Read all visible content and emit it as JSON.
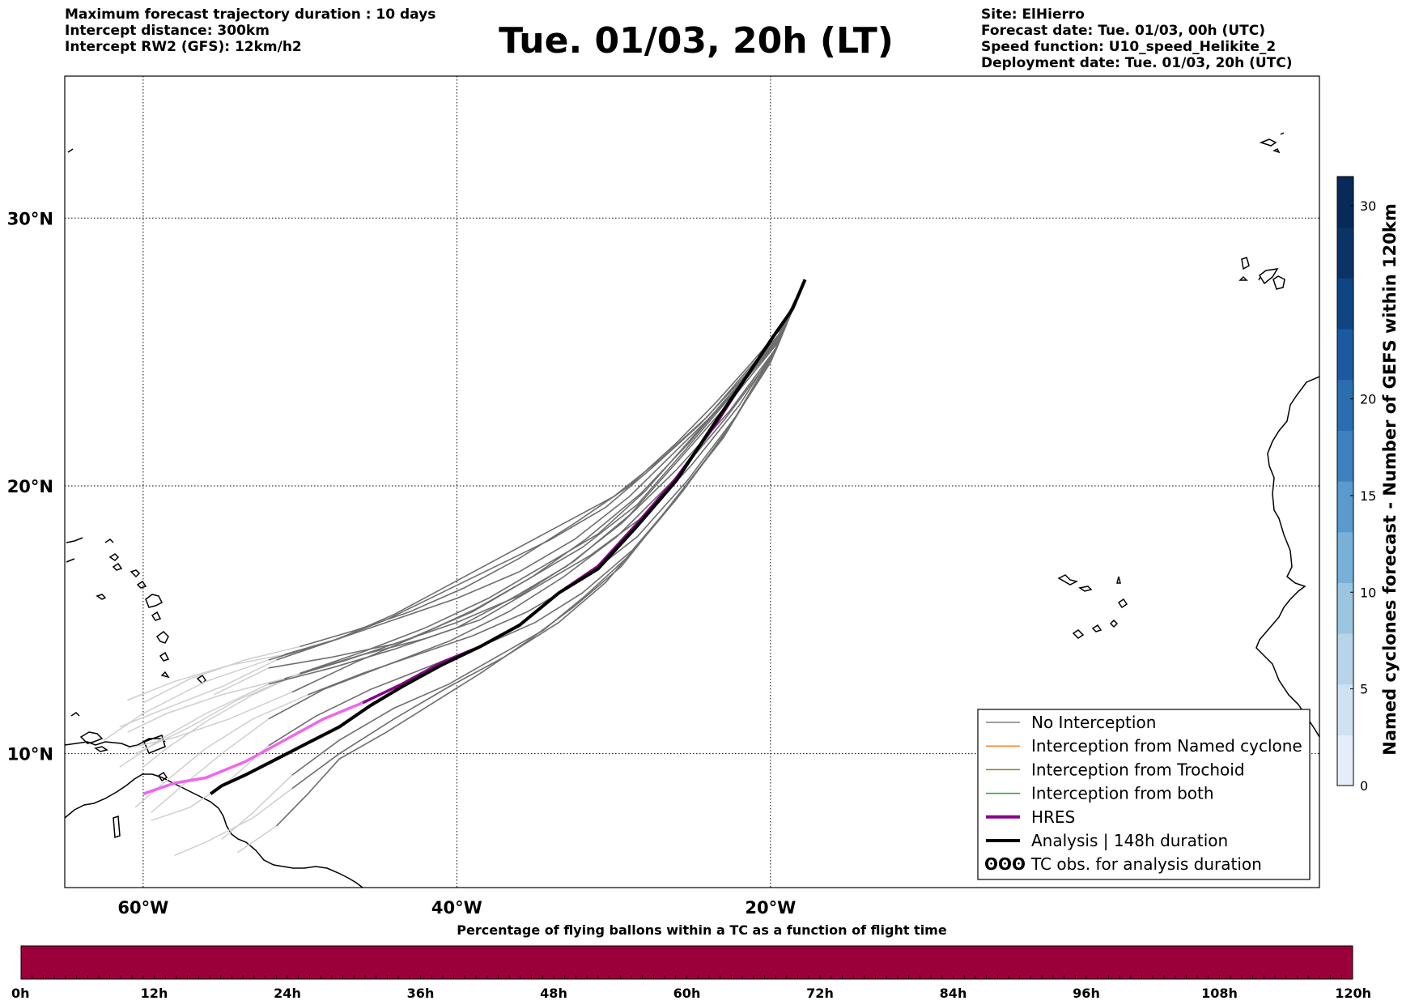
{
  "header_left": [
    "Maximum forecast trajectory duration : 10 days",
    "Intercept distance: 300km",
    "Intercept RW2 (GFS):  12km/h2"
  ],
  "title": "Tue. 01/03, 20h (LT)",
  "header_right": [
    "Site: ElHierro",
    "Forecast date: Tue. 01/03, 00h (UTC)",
    "Speed function: U10_speed_Helikite_2",
    "Deployment date: Tue. 01/03, 20h (UTC)"
  ],
  "map": {
    "lon_range": [
      -65,
      15
    ],
    "lat_range": [
      5,
      35.3
    ],
    "lon_ticks": [
      {
        "value": -60,
        "label": "60°W"
      },
      {
        "value": -40,
        "label": "40°W"
      },
      {
        "value": -20,
        "label": "20°W"
      }
    ],
    "lat_ticks": [
      {
        "value": 30,
        "label": "30°N"
      },
      {
        "value": 20,
        "label": "20°N"
      },
      {
        "value": 10,
        "label": "10°N"
      }
    ],
    "grid": true
  },
  "colorbar": {
    "label": "Named cyclones forecast - Number of GEFS within 120km",
    "ticks": [
      "0",
      "5",
      "10",
      "15",
      "20",
      "30"
    ],
    "colors": [
      "#e4edf8",
      "#d0e2f2",
      "#b8d4ea",
      "#9cc5e2",
      "#79b0d8",
      "#5a9acd",
      "#3d82bf",
      "#2a6eb0",
      "#1b5a9e",
      "#0f4583",
      "#0a3366",
      "#082a58"
    ]
  },
  "legend": {
    "items": [
      {
        "label": "No Interception",
        "color": "#808080",
        "width": 1.5
      },
      {
        "label": "Interception from Named cyclone",
        "color": "#ff7f2a",
        "width": 1.5
      },
      {
        "label": "Interception from Trochoid",
        "color": "#8b7f1a",
        "width": 1.5
      },
      {
        "label": "Interception from both",
        "color": "#2ca02c",
        "width": 1.5
      },
      {
        "label": "HRES",
        "color": "#8b008b",
        "width": 4
      },
      {
        "label": "Analysis | 148h duration",
        "color": "#000000",
        "width": 4
      },
      {
        "label": "TC obs. for analysis duration",
        "color": "#000000",
        "symbol": "ʘʘʘ"
      }
    ]
  },
  "time_bar": {
    "title": "Percentage of flying ballons within a TC as a function of flight time",
    "labels": [
      "0h",
      "12h",
      "24h",
      "36h",
      "48h",
      "60h",
      "72h",
      "84h",
      "96h",
      "108h",
      "120h"
    ],
    "color": "#9b003a"
  },
  "tracks": {
    "origin": [
      -17.8,
      27.7
    ],
    "hres": [
      [
        -17.8,
        27.7
      ],
      [
        -18.6,
        26.6
      ],
      [
        -19.8,
        25.6
      ],
      [
        -21.5,
        24.1
      ],
      [
        -23.5,
        22.3
      ],
      [
        -26.0,
        20.3
      ],
      [
        -28.5,
        18.6
      ],
      [
        -31.0,
        17.0
      ],
      [
        -33.5,
        16.0
      ],
      [
        -36.0,
        14.8
      ],
      [
        -38.5,
        14.0
      ],
      [
        -41.0,
        13.4
      ],
      [
        -43.5,
        12.6
      ],
      [
        -46.0,
        11.9
      ],
      [
        -48.5,
        11.3
      ],
      [
        -51.0,
        10.5
      ],
      [
        -53.5,
        9.7
      ],
      [
        -56.0,
        9.1
      ],
      [
        -58.0,
        8.9
      ],
      [
        -60.0,
        8.5
      ]
    ],
    "analysis": [
      [
        -17.8,
        27.7
      ],
      [
        -18.6,
        26.6
      ],
      [
        -19.8,
        25.6
      ],
      [
        -21.5,
        24.1
      ],
      [
        -23.5,
        22.4
      ],
      [
        -26.0,
        20.2
      ],
      [
        -28.5,
        18.5
      ],
      [
        -31.0,
        16.9
      ],
      [
        -33.5,
        16.0
      ],
      [
        -36.0,
        14.8
      ],
      [
        -38.5,
        14.0
      ],
      [
        -41.0,
        13.3
      ],
      [
        -43.5,
        12.5
      ],
      [
        -45.5,
        11.8
      ],
      [
        -47.5,
        11.0
      ],
      [
        -49.5,
        10.4
      ],
      [
        -51.5,
        9.8
      ],
      [
        -53.5,
        9.2
      ],
      [
        -55.0,
        8.8
      ],
      [
        -55.7,
        8.5
      ]
    ],
    "ensemble": [
      [
        [
          -17.8,
          27.7
        ],
        [
          -19.5,
          25.5
        ],
        [
          -22.0,
          23.8
        ],
        [
          -25.0,
          21.8
        ],
        [
          -28.0,
          19.8
        ],
        [
          -31.0,
          18.2
        ],
        [
          -34.5,
          17.0
        ],
        [
          -38.0,
          15.8
        ],
        [
          -42.0,
          14.7
        ],
        [
          -46.0,
          13.8
        ],
        [
          -50.0,
          13.0
        ],
        [
          -54.0,
          12.0
        ],
        [
          -57.0,
          11.0
        ],
        [
          -60.5,
          10.0
        ]
      ],
      [
        [
          -17.8,
          27.7
        ],
        [
          -19.5,
          25.4
        ],
        [
          -22.3,
          23.5
        ],
        [
          -25.5,
          21.3
        ],
        [
          -28.5,
          19.3
        ],
        [
          -32.0,
          17.7
        ],
        [
          -35.5,
          16.5
        ],
        [
          -39.0,
          15.3
        ],
        [
          -43.0,
          14.3
        ],
        [
          -47.0,
          13.5
        ],
        [
          -51.0,
          12.8
        ],
        [
          -55.0,
          12.2
        ],
        [
          -58.5,
          11.5
        ],
        [
          -61.0,
          10.8
        ]
      ],
      [
        [
          -17.8,
          27.7
        ],
        [
          -19.6,
          25.3
        ],
        [
          -22.5,
          23.2
        ],
        [
          -25.8,
          21.0
        ],
        [
          -29.0,
          18.9
        ],
        [
          -32.5,
          17.2
        ],
        [
          -36.0,
          15.9
        ],
        [
          -40.0,
          14.9
        ],
        [
          -44.0,
          14.1
        ],
        [
          -48.0,
          13.6
        ],
        [
          -52.0,
          13.2
        ],
        [
          -55.5,
          12.2
        ]
      ],
      [
        [
          -17.8,
          27.7
        ],
        [
          -19.5,
          25.3
        ],
        [
          -22.0,
          23.0
        ],
        [
          -25.0,
          20.8
        ],
        [
          -28.0,
          18.9
        ],
        [
          -31.5,
          17.4
        ],
        [
          -35.0,
          16.2
        ],
        [
          -38.5,
          15.0
        ],
        [
          -42.0,
          14.3
        ],
        [
          -46.0,
          13.7
        ],
        [
          -50.0,
          13.0
        ],
        [
          -53.0,
          12.2
        ],
        [
          -56.0,
          11.2
        ],
        [
          -58.5,
          10.2
        ],
        [
          -60.0,
          9.5
        ]
      ],
      [
        [
          -17.8,
          27.7
        ],
        [
          -19.6,
          25.2
        ],
        [
          -22.2,
          22.6
        ],
        [
          -25.3,
          20.2
        ],
        [
          -28.5,
          18.1
        ],
        [
          -32.0,
          16.5
        ],
        [
          -35.5,
          15.3
        ],
        [
          -39.0,
          14.4
        ],
        [
          -42.5,
          13.7
        ],
        [
          -46.0,
          13.0
        ],
        [
          -49.5,
          12.2
        ],
        [
          -53.0,
          11.3
        ],
        [
          -56.0,
          10.2
        ],
        [
          -58.5,
          9.0
        ],
        [
          -60.5,
          8.0
        ]
      ],
      [
        [
          -17.8,
          27.7
        ],
        [
          -19.7,
          25.0
        ],
        [
          -22.5,
          22.3
        ],
        [
          -25.6,
          19.8
        ],
        [
          -28.8,
          17.6
        ],
        [
          -32.0,
          16.0
        ],
        [
          -35.0,
          14.9
        ],
        [
          -38.5,
          14.0
        ],
        [
          -42.0,
          13.2
        ],
        [
          -45.5,
          12.4
        ],
        [
          -49.0,
          11.4
        ],
        [
          -52.0,
          10.3
        ],
        [
          -54.5,
          9.0
        ],
        [
          -57.0,
          8.0
        ],
        [
          -59.5,
          7.5
        ]
      ],
      [
        [
          -17.8,
          27.7
        ],
        [
          -19.8,
          24.9
        ],
        [
          -22.8,
          22.0
        ],
        [
          -26.0,
          19.5
        ],
        [
          -29.0,
          17.4
        ],
        [
          -31.8,
          15.9
        ],
        [
          -34.5,
          14.6
        ],
        [
          -37.5,
          13.6
        ],
        [
          -40.5,
          12.6
        ],
        [
          -44.0,
          11.7
        ],
        [
          -47.5,
          10.5
        ],
        [
          -50.5,
          9.2
        ],
        [
          -53.0,
          7.8
        ],
        [
          -55.0,
          6.8
        ]
      ],
      [
        [
          -17.8,
          27.7
        ],
        [
          -19.9,
          24.8
        ],
        [
          -23.0,
          21.8
        ],
        [
          -26.5,
          19.2
        ],
        [
          -29.5,
          17.0
        ],
        [
          -32.5,
          15.5
        ],
        [
          -35.5,
          14.2
        ],
        [
          -38.5,
          13.0
        ],
        [
          -41.5,
          11.9
        ],
        [
          -44.5,
          10.8
        ],
        [
          -47.5,
          9.8
        ],
        [
          -49.5,
          8.5
        ],
        [
          -51.5,
          7.3
        ],
        [
          -54.0,
          6.3
        ]
      ],
      [
        [
          -17.8,
          27.7
        ],
        [
          -19.5,
          25.6
        ],
        [
          -21.8,
          24.0
        ],
        [
          -24.5,
          22.3
        ],
        [
          -27.5,
          20.7
        ],
        [
          -30.5,
          19.2
        ],
        [
          -34.0,
          18.0
        ],
        [
          -37.5,
          17.0
        ],
        [
          -41.0,
          16.0
        ],
        [
          -44.5,
          15.0
        ],
        [
          -48.0,
          14.2
        ],
        [
          -51.5,
          13.5
        ],
        [
          -55.0,
          12.5
        ],
        [
          -58.5,
          11.7
        ],
        [
          -61.5,
          11.0
        ]
      ],
      [
        [
          -17.8,
          27.7
        ],
        [
          -19.4,
          25.7
        ],
        [
          -21.5,
          24.3
        ],
        [
          -24.0,
          22.6
        ],
        [
          -27.0,
          21.0
        ],
        [
          -30.0,
          19.6
        ],
        [
          -33.5,
          18.5
        ],
        [
          -37.0,
          17.4
        ],
        [
          -40.5,
          16.3
        ],
        [
          -44.0,
          15.2
        ],
        [
          -47.5,
          14.3
        ],
        [
          -51.0,
          13.7
        ],
        [
          -54.5,
          13.3
        ],
        [
          -58.0,
          12.7
        ],
        [
          -61.0,
          12.0
        ]
      ],
      [
        [
          -17.8,
          27.7
        ],
        [
          -19.6,
          25.4
        ],
        [
          -22.4,
          23.4
        ],
        [
          -25.7,
          21.5
        ],
        [
          -29.0,
          19.6
        ],
        [
          -32.5,
          18.0
        ],
        [
          -36.0,
          16.8
        ],
        [
          -40.0,
          15.8
        ],
        [
          -44.0,
          15.0
        ],
        [
          -48.0,
          14.2
        ],
        [
          -52.0,
          13.5
        ],
        [
          -56.0,
          12.7
        ],
        [
          -60.0,
          11.5
        ],
        [
          -62.5,
          10.5
        ]
      ],
      [
        [
          -17.8,
          27.7
        ],
        [
          -19.7,
          25.1
        ],
        [
          -22.6,
          22.8
        ],
        [
          -26.0,
          20.6
        ],
        [
          -29.5,
          18.6
        ],
        [
          -33.0,
          17.0
        ],
        [
          -36.5,
          15.8
        ],
        [
          -40.0,
          14.7
        ],
        [
          -44.0,
          13.9
        ],
        [
          -48.0,
          13.2
        ],
        [
          -52.0,
          12.6
        ],
        [
          -56.0,
          11.5
        ],
        [
          -59.0,
          10.5
        ],
        [
          -61.5,
          9.5
        ]
      ],
      [
        [
          -17.8,
          27.7
        ],
        [
          -19.8,
          24.9
        ],
        [
          -22.9,
          22.5
        ],
        [
          -26.2,
          20.2
        ],
        [
          -29.8,
          18.1
        ],
        [
          -33.2,
          16.6
        ],
        [
          -36.7,
          15.3
        ],
        [
          -40.5,
          14.2
        ],
        [
          -44.5,
          13.3
        ],
        [
          -48.5,
          12.4
        ],
        [
          -52.0,
          11.3
        ],
        [
          -55.0,
          10.0
        ],
        [
          -57.5,
          8.8
        ],
        [
          -59.5,
          7.8
        ]
      ],
      [
        [
          -17.8,
          27.7
        ],
        [
          -20.0,
          24.6
        ],
        [
          -23.2,
          21.7
        ],
        [
          -27.0,
          18.8
        ],
        [
          -30.5,
          16.4
        ],
        [
          -33.5,
          14.9
        ],
        [
          -37.0,
          13.6
        ],
        [
          -40.5,
          12.5
        ],
        [
          -44.0,
          11.3
        ],
        [
          -47.5,
          10.0
        ],
        [
          -50.5,
          8.7
        ],
        [
          -53.0,
          7.6
        ],
        [
          -56.0,
          6.7
        ],
        [
          -58.0,
          6.2
        ]
      ],
      [
        [
          -17.8,
          27.7
        ],
        [
          -19.3,
          25.9
        ],
        [
          -21.2,
          24.6
        ],
        [
          -23.5,
          23.1
        ],
        [
          -26.0,
          21.6
        ],
        [
          -29.0,
          20.0
        ],
        [
          -32.5,
          18.6
        ],
        [
          -36.0,
          17.3
        ],
        [
          -39.5,
          16.2
        ],
        [
          -43.0,
          15.3
        ],
        [
          -46.5,
          14.6
        ],
        [
          -50.0,
          14.0
        ],
        [
          -53.5,
          13.5
        ],
        [
          -57.0,
          12.8
        ],
        [
          -60.0,
          11.9
        ]
      ],
      [
        [
          -17.8,
          27.7
        ],
        [
          -19.6,
          25.5
        ],
        [
          -22.1,
          23.7
        ],
        [
          -25.2,
          21.6
        ],
        [
          -28.3,
          19.7
        ],
        [
          -31.8,
          18.0
        ],
        [
          -35.2,
          16.6
        ],
        [
          -38.8,
          15.4
        ],
        [
          -42.5,
          14.4
        ],
        [
          -46.5,
          13.4
        ],
        [
          -50.5,
          12.3
        ],
        [
          -54.5,
          11.3
        ],
        [
          -58.0,
          10.6
        ],
        [
          -61.0,
          10.2
        ]
      ]
    ]
  }
}
